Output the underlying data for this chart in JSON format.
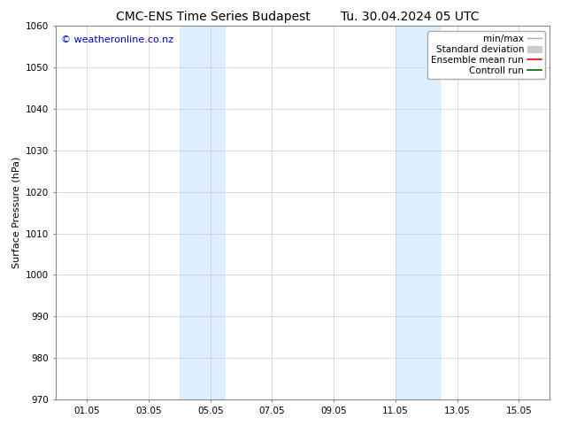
{
  "title_left": "CMC-ENS Time Series Budapest",
  "title_right": "Tu. 30.04.2024 05 UTC",
  "ylabel": "Surface Pressure (hPa)",
  "ylim": [
    970,
    1060
  ],
  "yticks": [
    970,
    980,
    990,
    1000,
    1010,
    1020,
    1030,
    1040,
    1050,
    1060
  ],
  "xtick_labels": [
    "01.05",
    "03.05",
    "05.05",
    "07.05",
    "09.05",
    "11.05",
    "13.05",
    "15.05"
  ],
  "xtick_positions": [
    1,
    3,
    5,
    7,
    9,
    11,
    13,
    15
  ],
  "xlim": [
    0,
    16
  ],
  "shaded_bands": [
    {
      "x_start": 4.0,
      "x_end": 5.5
    },
    {
      "x_start": 11.0,
      "x_end": 12.5
    }
  ],
  "shade_color": "#ddeeff",
  "watermark_text": "© weatheronline.co.nz",
  "watermark_color": "#0000cc",
  "background_color": "#ffffff",
  "plot_bg_color": "#ffffff",
  "grid_color": "#cccccc",
  "legend_entries": [
    {
      "label": "min/max",
      "color": "#aaaaaa",
      "linewidth": 1.0,
      "style": "solid"
    },
    {
      "label": "Standard deviation",
      "color": "#cccccc",
      "linewidth": 5,
      "style": "solid"
    },
    {
      "label": "Ensemble mean run",
      "color": "#ff0000",
      "linewidth": 1.2,
      "style": "solid"
    },
    {
      "label": "Controll run",
      "color": "#006600",
      "linewidth": 1.2,
      "style": "solid"
    }
  ],
  "title_fontsize": 10,
  "axis_label_fontsize": 8,
  "tick_fontsize": 7.5,
  "legend_fontsize": 7.5,
  "watermark_fontsize": 8
}
